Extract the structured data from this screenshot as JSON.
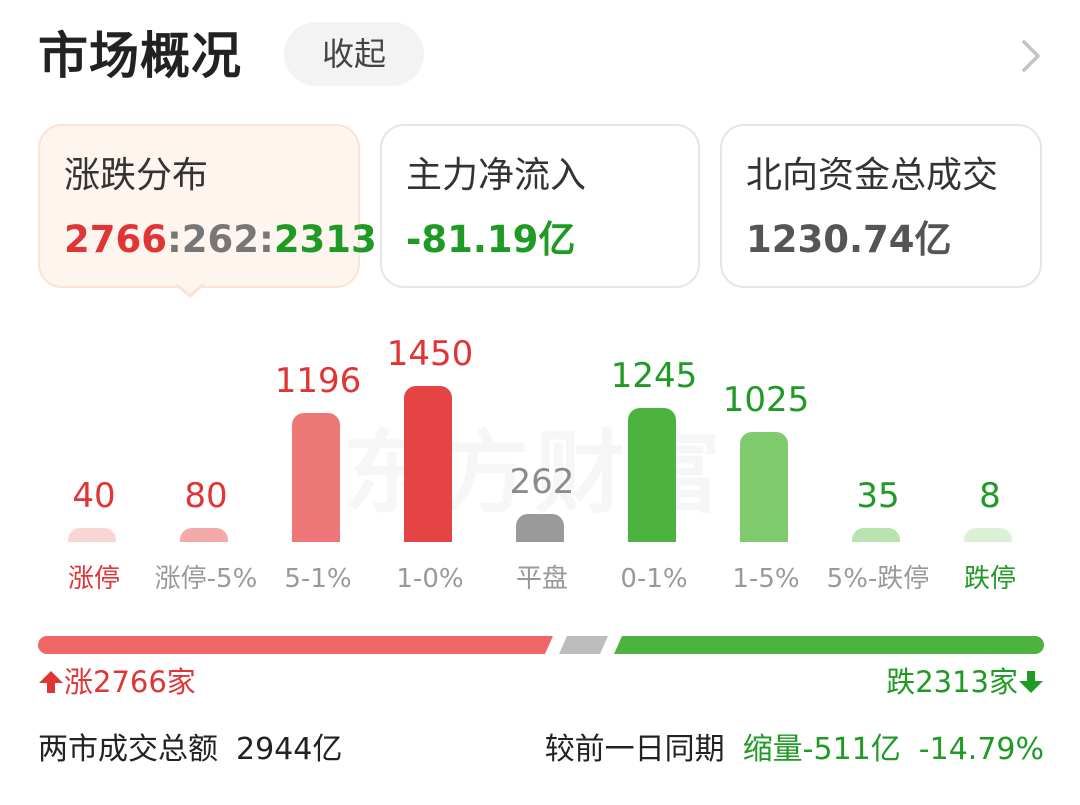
{
  "header": {
    "title": "市场概况",
    "collapse_label": "收起",
    "chevron_icon": "chevron-right-icon"
  },
  "cards": [
    {
      "label": "涨跌分布",
      "up": "2766",
      "sep1": ":",
      "flat": "262",
      "sep2": ":",
      "down": "2313"
    },
    {
      "label": "主力净流入",
      "value": "-81.19亿"
    },
    {
      "label": "北向资金总成交",
      "value": "1230.74亿"
    }
  ],
  "colors": {
    "up": "#e03535",
    "flat": "#8c8c8c",
    "down": "#1f9a24"
  },
  "chart_data": {
    "type": "bar",
    "categories": [
      "涨停",
      "涨停-5%",
      "5-1%",
      "1-0%",
      "平盘",
      "0-1%",
      "1-5%",
      "5%-跌停",
      "跌停"
    ],
    "values": [
      40,
      80,
      1196,
      1450,
      262,
      1245,
      1025,
      35,
      8
    ],
    "value_labels": [
      "40",
      "80",
      "1196",
      "1450",
      "262",
      "1245",
      "1025",
      "35",
      "8"
    ],
    "bar_colors": [
      "#f9d6d6",
      "#f4a9a9",
      "#ee7777",
      "#e54444",
      "#9a9a9a",
      "#4db33f",
      "#7fcb6e",
      "#b9e3ae",
      "#dbf0d5"
    ],
    "value_colors": [
      "#e03535",
      "#e03535",
      "#e03535",
      "#e03535",
      "#8c8c8c",
      "#1f9a24",
      "#1f9a24",
      "#1f9a24",
      "#1f9a24"
    ],
    "label_colors": [
      "#e03535",
      "#999999",
      "#999999",
      "#999999",
      "#999999",
      "#999999",
      "#999999",
      "#999999",
      "#1f9a24"
    ],
    "watermark": "东方财富"
  },
  "ratio": {
    "up": 2766,
    "flat": 262,
    "down": 2313
  },
  "counts": {
    "up_text": "涨2766家",
    "down_text": "跌2313家"
  },
  "footer": {
    "turnover_label": "两市成交总额",
    "turnover_value": "2944亿",
    "compare_label": "较前一日同期",
    "change_text": "缩量-511亿",
    "change_pct": "-14.79%"
  }
}
